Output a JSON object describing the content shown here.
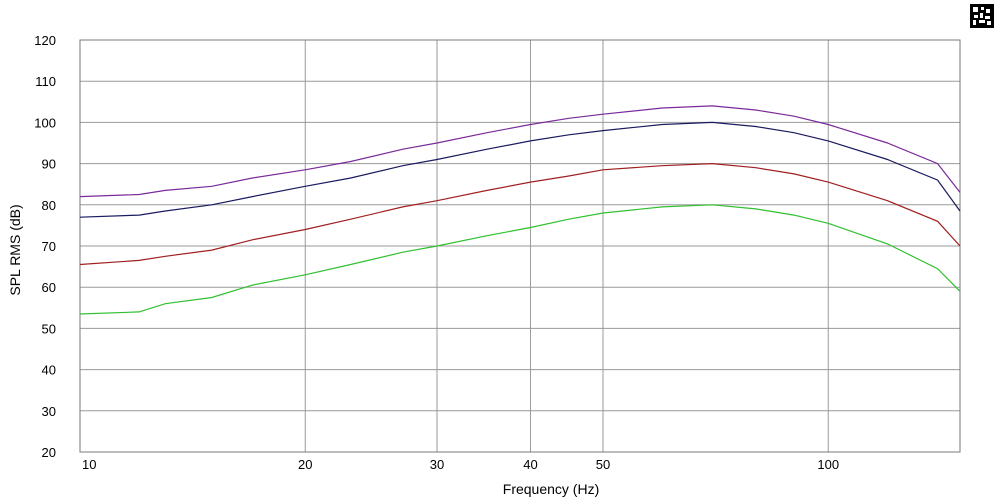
{
  "chart_data": {
    "type": "line",
    "title": "",
    "xlabel": "Frequency (Hz)",
    "ylabel": "SPL RMS (dB)",
    "xscale": "log",
    "xlim": [
      10,
      150
    ],
    "ylim": [
      20,
      120
    ],
    "xticks": [
      10,
      20,
      30,
      40,
      50,
      100
    ],
    "yticks": [
      20,
      30,
      40,
      50,
      60,
      70,
      80,
      90,
      100,
      110,
      120
    ],
    "grid": true,
    "legend": "none",
    "series": [
      {
        "color": "#7a2a9a",
        "x": [
          10,
          12,
          13,
          15,
          17,
          20,
          23,
          27,
          30,
          35,
          40,
          45,
          50,
          60,
          70,
          80,
          90,
          100,
          120,
          140,
          150
        ],
        "y": [
          82,
          82.5,
          83.5,
          84.5,
          86.5,
          88.5,
          90.5,
          93.5,
          95,
          97.5,
          99.5,
          101,
          102,
          103.5,
          104,
          103,
          101.5,
          99.5,
          95,
          90,
          83
        ]
      },
      {
        "color": "#1a1a60",
        "x": [
          10,
          12,
          13,
          15,
          17,
          20,
          23,
          27,
          30,
          35,
          40,
          45,
          50,
          60,
          70,
          80,
          90,
          100,
          120,
          140,
          150
        ],
        "y": [
          77,
          77.5,
          78.5,
          80,
          82,
          84.5,
          86.5,
          89.5,
          91,
          93.5,
          95.5,
          97,
          98,
          99.5,
          100,
          99,
          97.5,
          95.5,
          91,
          86,
          78.5
        ]
      },
      {
        "color": "#a02020",
        "x": [
          10,
          12,
          13,
          15,
          17,
          20,
          23,
          27,
          30,
          35,
          40,
          45,
          50,
          60,
          70,
          80,
          90,
          100,
          120,
          140,
          150
        ],
        "y": [
          65.5,
          66.5,
          67.5,
          69,
          71.5,
          74,
          76.5,
          79.5,
          81,
          83.5,
          85.5,
          87,
          88.5,
          89.5,
          90,
          89,
          87.5,
          85.5,
          81,
          76,
          70
        ]
      },
      {
        "color": "#30c030",
        "x": [
          10,
          12,
          13,
          15,
          17,
          20,
          23,
          27,
          30,
          35,
          40,
          45,
          50,
          60,
          70,
          80,
          90,
          100,
          120,
          140,
          150
        ],
        "y": [
          53.5,
          54,
          56,
          57.5,
          60.5,
          63,
          65.5,
          68.5,
          70,
          72.5,
          74.5,
          76.5,
          78,
          79.5,
          80,
          79,
          77.5,
          75.5,
          70.5,
          64.5,
          59
        ]
      }
    ]
  }
}
